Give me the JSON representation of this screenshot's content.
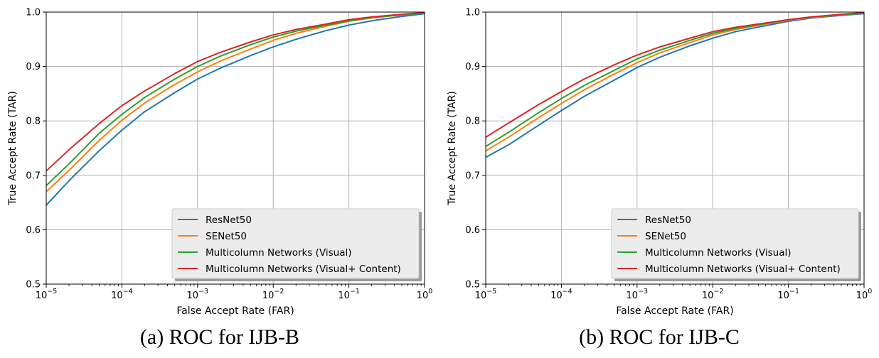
{
  "chart_data": [
    {
      "type": "line",
      "caption": "(a) ROC for IJB-B",
      "xlabel": "False Accept Rate (FAR)",
      "ylabel": "True Accept Rate (TAR)",
      "xscale": "log",
      "xlim": [
        1e-05,
        1
      ],
      "ylim": [
        0.5,
        1.0
      ],
      "x_ticks": [
        {
          "base": "10",
          "exp": "−5"
        },
        {
          "base": "10",
          "exp": "−4"
        },
        {
          "base": "10",
          "exp": "−3"
        },
        {
          "base": "10",
          "exp": "−2"
        },
        {
          "base": "10",
          "exp": "−1"
        },
        {
          "base": "10",
          "exp": "0"
        }
      ],
      "y_ticks": [
        "0.5",
        "0.6",
        "0.7",
        "0.8",
        "0.9",
        "1.0"
      ],
      "grid": true,
      "legend_position": "lower-right",
      "x": [
        1e-05,
        2e-05,
        5e-05,
        0.0001,
        0.0002,
        0.0005,
        0.001,
        0.002,
        0.005,
        0.01,
        0.02,
        0.05,
        0.1,
        0.2,
        0.5,
        1
      ],
      "series": [
        {
          "name": "ResNet50",
          "color": "#1f77b4",
          "values": [
            0.645,
            0.69,
            0.745,
            0.783,
            0.817,
            0.852,
            0.877,
            0.897,
            0.92,
            0.936,
            0.95,
            0.966,
            0.976,
            0.984,
            0.992,
            0.997
          ]
        },
        {
          "name": "SENet50",
          "color": "#ff7f0e",
          "values": [
            0.67,
            0.709,
            0.764,
            0.801,
            0.833,
            0.867,
            0.89,
            0.91,
            0.932,
            0.948,
            0.961,
            0.974,
            0.983,
            0.989,
            0.995,
            0.998
          ]
        },
        {
          "name": "Multicolumn Networks (Visual)",
          "color": "#2ca02c",
          "values": [
            0.681,
            0.721,
            0.777,
            0.812,
            0.843,
            0.877,
            0.9,
            0.919,
            0.94,
            0.954,
            0.965,
            0.976,
            0.984,
            0.99,
            0.995,
            0.998
          ]
        },
        {
          "name": "Multicolumn Networks (Visual+ Content)",
          "color": "#d62728",
          "values": [
            0.708,
            0.747,
            0.795,
            0.828,
            0.855,
            0.887,
            0.909,
            0.926,
            0.945,
            0.958,
            0.968,
            0.978,
            0.986,
            0.991,
            0.996,
            0.999
          ]
        }
      ]
    },
    {
      "type": "line",
      "caption": "(b) ROC for IJB-C",
      "xlabel": "False Accept Rate (FAR)",
      "ylabel": "True Accept Rate (TAR)",
      "xscale": "log",
      "xlim": [
        1e-05,
        1
      ],
      "ylim": [
        0.5,
        1.0
      ],
      "x_ticks": [
        {
          "base": "10",
          "exp": "−5"
        },
        {
          "base": "10",
          "exp": "−4"
        },
        {
          "base": "10",
          "exp": "−3"
        },
        {
          "base": "10",
          "exp": "−2"
        },
        {
          "base": "10",
          "exp": "−1"
        },
        {
          "base": "10",
          "exp": "0"
        }
      ],
      "y_ticks": [
        "0.5",
        "0.6",
        "0.7",
        "0.8",
        "0.9",
        "1.0"
      ],
      "grid": true,
      "legend_position": "lower-right",
      "x": [
        1e-05,
        2e-05,
        5e-05,
        0.0001,
        0.0002,
        0.0005,
        0.001,
        0.002,
        0.005,
        0.01,
        0.02,
        0.05,
        0.1,
        0.2,
        0.5,
        1
      ],
      "series": [
        {
          "name": "ResNet50",
          "color": "#1f77b4",
          "values": [
            0.733,
            0.756,
            0.792,
            0.819,
            0.845,
            0.875,
            0.898,
            0.917,
            0.938,
            0.952,
            0.964,
            0.975,
            0.983,
            0.989,
            0.994,
            0.997
          ]
        },
        {
          "name": "SENet50",
          "color": "#ff7f0e",
          "values": [
            0.745,
            0.77,
            0.806,
            0.832,
            0.857,
            0.886,
            0.907,
            0.925,
            0.944,
            0.958,
            0.968,
            0.978,
            0.985,
            0.99,
            0.995,
            0.998
          ]
        },
        {
          "name": "Multicolumn Networks (Visual)",
          "color": "#2ca02c",
          "values": [
            0.753,
            0.779,
            0.815,
            0.841,
            0.865,
            0.893,
            0.914,
            0.93,
            0.948,
            0.961,
            0.97,
            0.979,
            0.986,
            0.991,
            0.995,
            0.998
          ]
        },
        {
          "name": "Multicolumn Networks (Visual+ Content)",
          "color": "#d62728",
          "values": [
            0.77,
            0.796,
            0.83,
            0.854,
            0.877,
            0.903,
            0.921,
            0.936,
            0.952,
            0.964,
            0.972,
            0.98,
            0.986,
            0.991,
            0.996,
            0.999
          ]
        }
      ]
    }
  ]
}
